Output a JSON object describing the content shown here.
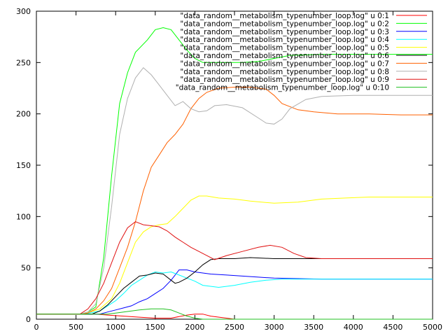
{
  "chart_data": {
    "type": "line",
    "title": "",
    "xlabel": "",
    "ylabel": "",
    "xlim": [
      0,
      5000
    ],
    "ylim": [
      0,
      300
    ],
    "xticks": [
      0,
      500,
      1000,
      1500,
      2000,
      2500,
      3000,
      3500,
      4000,
      4500,
      5000
    ],
    "yticks": [
      0,
      50,
      100,
      150,
      200,
      250,
      300
    ],
    "grid": false,
    "legend_position": "top-right",
    "series": [
      {
        "name": "\"data_random__metabolism_typenumber_loop.log\" u 0:1",
        "color": "#ff0000",
        "points": [
          [
            0,
            5
          ],
          [
            550,
            5
          ],
          [
            650,
            5
          ],
          [
            750,
            5
          ],
          [
            900,
            4
          ],
          [
            1100,
            3
          ],
          [
            1300,
            2
          ],
          [
            1500,
            1
          ],
          [
            1700,
            1
          ],
          [
            1900,
            4
          ],
          [
            2000,
            5
          ],
          [
            2100,
            5
          ],
          [
            2200,
            3
          ],
          [
            2400,
            1
          ],
          [
            2500,
            0
          ],
          [
            5000,
            0
          ]
        ]
      },
      {
        "name": "\"data_random__metabolism_typenumber_loop.log\" u 0:2",
        "color": "#00ff00",
        "points": [
          [
            0,
            5
          ],
          [
            550,
            5
          ],
          [
            650,
            7
          ],
          [
            750,
            12
          ],
          [
            850,
            60
          ],
          [
            950,
            140
          ],
          [
            1050,
            210
          ],
          [
            1150,
            240
          ],
          [
            1250,
            260
          ],
          [
            1400,
            272
          ],
          [
            1500,
            282
          ],
          [
            1600,
            284
          ],
          [
            1700,
            282
          ],
          [
            1800,
            272
          ],
          [
            1900,
            262
          ],
          [
            2000,
            254
          ],
          [
            2100,
            250
          ],
          [
            2400,
            250
          ],
          [
            2600,
            250
          ],
          [
            2800,
            251
          ],
          [
            3000,
            254
          ],
          [
            3200,
            257
          ],
          [
            3600,
            258
          ],
          [
            5000,
            258
          ]
        ]
      },
      {
        "name": "\"data_random__metabolism_typenumber_loop.log\" u 0:3",
        "color": "#0000ff",
        "points": [
          [
            0,
            5
          ],
          [
            800,
            5
          ],
          [
            900,
            7
          ],
          [
            1000,
            9
          ],
          [
            1100,
            11
          ],
          [
            1200,
            13
          ],
          [
            1300,
            17
          ],
          [
            1400,
            20
          ],
          [
            1500,
            25
          ],
          [
            1600,
            30
          ],
          [
            1700,
            38
          ],
          [
            1800,
            48
          ],
          [
            1900,
            48
          ],
          [
            2000,
            46
          ],
          [
            2200,
            44
          ],
          [
            2400,
            43
          ],
          [
            2600,
            42
          ],
          [
            2800,
            41
          ],
          [
            3000,
            40
          ],
          [
            3600,
            39
          ],
          [
            5000,
            39
          ]
        ]
      },
      {
        "name": "\"data_random__metabolism_typenumber_loop.log\" u 0:4",
        "color": "#00ffff",
        "points": [
          [
            0,
            5
          ],
          [
            600,
            5
          ],
          [
            800,
            8
          ],
          [
            1000,
            18
          ],
          [
            1100,
            25
          ],
          [
            1200,
            33
          ],
          [
            1300,
            38
          ],
          [
            1400,
            43
          ],
          [
            1500,
            46
          ],
          [
            1600,
            45
          ],
          [
            1700,
            46
          ],
          [
            1800,
            43
          ],
          [
            1900,
            40
          ],
          [
            2000,
            37
          ],
          [
            2100,
            33
          ],
          [
            2300,
            31
          ],
          [
            2500,
            33
          ],
          [
            2700,
            36
          ],
          [
            2900,
            38
          ],
          [
            3100,
            39
          ],
          [
            3500,
            39
          ],
          [
            5000,
            39
          ]
        ]
      },
      {
        "name": "\"data_random__metabolism_typenumber_loop.log\" u 0:5",
        "color": "#ffff00",
        "points": [
          [
            0,
            5
          ],
          [
            600,
            5
          ],
          [
            800,
            10
          ],
          [
            950,
            20
          ],
          [
            1050,
            35
          ],
          [
            1150,
            55
          ],
          [
            1250,
            75
          ],
          [
            1350,
            85
          ],
          [
            1450,
            90
          ],
          [
            1550,
            92
          ],
          [
            1650,
            93
          ],
          [
            1750,
            100
          ],
          [
            1850,
            108
          ],
          [
            1950,
            116
          ],
          [
            2050,
            120
          ],
          [
            2150,
            120
          ],
          [
            2300,
            118
          ],
          [
            2500,
            117
          ],
          [
            2700,
            115
          ],
          [
            3000,
            113
          ],
          [
            3300,
            114
          ],
          [
            3600,
            117
          ],
          [
            3900,
            118
          ],
          [
            4200,
            119
          ],
          [
            5000,
            119
          ]
        ]
      },
      {
        "name": "\"data_random__metabolism_typenumber_loop.log\" u 0:6",
        "color": "#000000",
        "points": [
          [
            0,
            5
          ],
          [
            700,
            5
          ],
          [
            800,
            8
          ],
          [
            900,
            14
          ],
          [
            1000,
            22
          ],
          [
            1100,
            30
          ],
          [
            1200,
            36
          ],
          [
            1300,
            42
          ],
          [
            1400,
            43
          ],
          [
            1500,
            45
          ],
          [
            1600,
            44
          ],
          [
            1700,
            38
          ],
          [
            1750,
            35
          ],
          [
            1800,
            36
          ],
          [
            1900,
            40
          ],
          [
            2000,
            46
          ],
          [
            2100,
            53
          ],
          [
            2200,
            58
          ],
          [
            2300,
            59
          ],
          [
            2500,
            59
          ],
          [
            2700,
            60
          ],
          [
            3000,
            59
          ],
          [
            5000,
            59
          ]
        ]
      },
      {
        "name": "\"data_random__metabolism_typenumber_loop.log\" u 0:7",
        "color": "#ff6000",
        "points": [
          [
            0,
            5
          ],
          [
            550,
            5
          ],
          [
            650,
            6
          ],
          [
            750,
            10
          ],
          [
            850,
            18
          ],
          [
            950,
            30
          ],
          [
            1050,
            50
          ],
          [
            1150,
            70
          ],
          [
            1250,
            95
          ],
          [
            1350,
            125
          ],
          [
            1450,
            148
          ],
          [
            1550,
            160
          ],
          [
            1650,
            172
          ],
          [
            1750,
            180
          ],
          [
            1850,
            190
          ],
          [
            1950,
            205
          ],
          [
            2050,
            215
          ],
          [
            2150,
            221
          ],
          [
            2300,
            225
          ],
          [
            2500,
            226
          ],
          [
            2700,
            226
          ],
          [
            2900,
            224
          ],
          [
            3000,
            218
          ],
          [
            3100,
            210
          ],
          [
            3300,
            204
          ],
          [
            3500,
            202
          ],
          [
            3800,
            200
          ],
          [
            4200,
            200
          ],
          [
            4600,
            199
          ],
          [
            5000,
            199
          ]
        ]
      },
      {
        "name": "\"data_random__metabolism_typenumber_loop.log\" u 0:8",
        "color": "#b0b0b0",
        "points": [
          [
            0,
            5
          ],
          [
            550,
            5
          ],
          [
            650,
            7
          ],
          [
            750,
            15
          ],
          [
            850,
            50
          ],
          [
            950,
            110
          ],
          [
            1050,
            180
          ],
          [
            1150,
            215
          ],
          [
            1250,
            235
          ],
          [
            1350,
            245
          ],
          [
            1450,
            238
          ],
          [
            1550,
            228
          ],
          [
            1650,
            218
          ],
          [
            1750,
            208
          ],
          [
            1850,
            212
          ],
          [
            1950,
            205
          ],
          [
            2050,
            202
          ],
          [
            2150,
            203
          ],
          [
            2250,
            208
          ],
          [
            2400,
            209
          ],
          [
            2600,
            206
          ],
          [
            2800,
            196
          ],
          [
            2900,
            191
          ],
          [
            3000,
            190
          ],
          [
            3100,
            195
          ],
          [
            3200,
            205
          ],
          [
            3400,
            214
          ],
          [
            3600,
            217
          ],
          [
            4000,
            218
          ],
          [
            5000,
            218
          ]
        ]
      },
      {
        "name": "\"data_random__metabolism_typenumber_loop.log\" u 0:9",
        "color": "#e01010",
        "points": [
          [
            0,
            5
          ],
          [
            550,
            5
          ],
          [
            650,
            10
          ],
          [
            750,
            20
          ],
          [
            850,
            35
          ],
          [
            950,
            55
          ],
          [
            1050,
            75
          ],
          [
            1150,
            89
          ],
          [
            1250,
            95
          ],
          [
            1350,
            92
          ],
          [
            1450,
            91
          ],
          [
            1550,
            90
          ],
          [
            1650,
            86
          ],
          [
            1750,
            80
          ],
          [
            1850,
            75
          ],
          [
            1950,
            70
          ],
          [
            2050,
            66
          ],
          [
            2150,
            62
          ],
          [
            2250,
            58
          ],
          [
            2400,
            62
          ],
          [
            2600,
            66
          ],
          [
            2800,
            70
          ],
          [
            2950,
            72
          ],
          [
            3100,
            70
          ],
          [
            3250,
            64
          ],
          [
            3400,
            60
          ],
          [
            3600,
            59
          ],
          [
            5000,
            59
          ]
        ]
      },
      {
        "name": "\"data_random__metabolism_typenumber_loop.log\" u 0:10",
        "color": "#20c020",
        "points": [
          [
            0,
            5
          ],
          [
            550,
            5
          ],
          [
            700,
            5
          ],
          [
            900,
            5
          ],
          [
            1100,
            7
          ],
          [
            1300,
            9
          ],
          [
            1450,
            10
          ],
          [
            1600,
            10
          ],
          [
            1700,
            9
          ],
          [
            1800,
            6
          ],
          [
            1900,
            3
          ],
          [
            2000,
            1
          ],
          [
            2100,
            0
          ],
          [
            5000,
            0
          ]
        ]
      }
    ]
  }
}
